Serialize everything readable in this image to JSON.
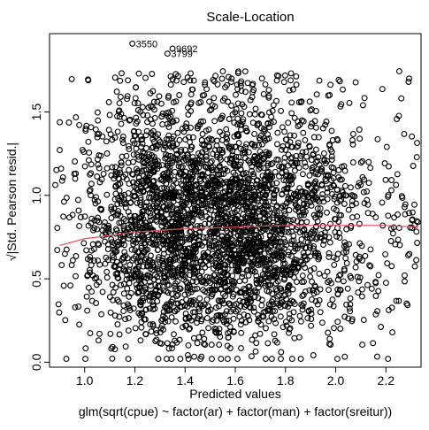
{
  "chart_data": {
    "type": "scatter",
    "title": "Scale-Location",
    "xlabel": "Predicted values",
    "ylabel": "√|Std. Pearson resid.|",
    "subtitle": "glm(sqrt(cpue) ~ factor(ar) + factor(man) + factor(sreitur))",
    "xlim": [
      0.86,
      2.34
    ],
    "ylim": [
      -0.03,
      1.97
    ],
    "x_ticks": [
      1.0,
      1.2,
      1.4,
      1.6,
      1.8,
      2.0,
      2.2
    ],
    "x_tick_labels": [
      "1.0",
      "1.2",
      "1.4",
      "1.6",
      "1.8",
      "2.0",
      "2.2"
    ],
    "y_ticks": [
      0.0,
      0.5,
      1.0,
      1.5
    ],
    "y_tick_labels": [
      "0.0",
      "0.5",
      "1.0",
      "1.5"
    ],
    "point_labels": [
      {
        "id": "3550",
        "x": 1.19,
        "y": 1.91
      },
      {
        "id": "9692",
        "x": 1.35,
        "y": 1.88
      },
      {
        "id": "3799",
        "x": 1.33,
        "y": 1.85
      }
    ],
    "smoother": {
      "color": "#e0505a",
      "x": [
        0.9,
        1.0,
        1.1,
        1.2,
        1.3,
        1.4,
        1.5,
        1.6,
        1.7,
        1.8,
        1.9,
        2.0,
        2.1,
        2.2,
        2.33
      ],
      "y": [
        0.7,
        0.74,
        0.76,
        0.78,
        0.79,
        0.8,
        0.805,
        0.81,
        0.815,
        0.82,
        0.82,
        0.82,
        0.82,
        0.82,
        0.81
      ]
    },
    "scatter_clusters": [
      {
        "x": [
          0.88,
          1.0
        ],
        "n": 45
      },
      {
        "x": [
          1.0,
          1.12
        ],
        "n": 140
      },
      {
        "x": [
          1.12,
          1.22
        ],
        "n": 260
      },
      {
        "x": [
          1.22,
          1.32
        ],
        "n": 380
      },
      {
        "x": [
          1.32,
          1.42
        ],
        "n": 440
      },
      {
        "x": [
          1.42,
          1.52
        ],
        "n": 380
      },
      {
        "x": [
          1.52,
          1.62
        ],
        "n": 460
      },
      {
        "x": [
          1.62,
          1.72
        ],
        "n": 420
      },
      {
        "x": [
          1.72,
          1.82
        ],
        "n": 330
      },
      {
        "x": [
          1.82,
          1.92
        ],
        "n": 240
      },
      {
        "x": [
          1.92,
          2.02
        ],
        "n": 160
      },
      {
        "x": [
          2.02,
          2.12
        ],
        "n": 90
      },
      {
        "x": [
          2.12,
          2.22
        ],
        "n": 40
      },
      {
        "x": [
          2.22,
          2.33
        ],
        "n": 55
      }
    ],
    "grid": false,
    "frame": true
  }
}
